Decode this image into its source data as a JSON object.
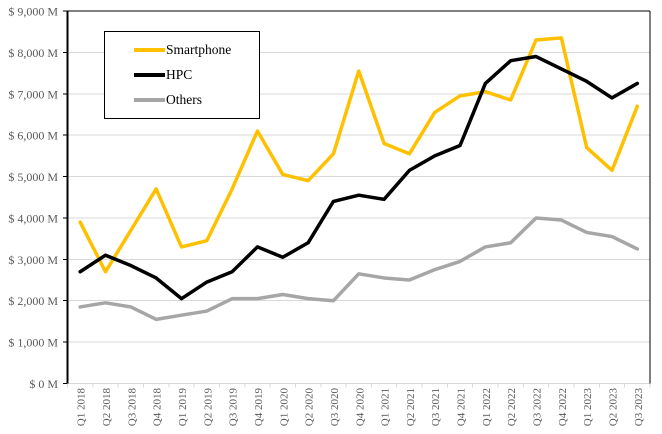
{
  "chart_data": {
    "type": "line",
    "title": "",
    "unit": "$ M",
    "categories": [
      "Q1 2018",
      "Q2 2018",
      "Q3 2018",
      "Q4 2018",
      "Q1 2019",
      "Q2 2019",
      "Q3 2019",
      "Q4 2019",
      "Q1 2020",
      "Q2 2020",
      "Q3 2020",
      "Q4 2020",
      "Q1 2021",
      "Q2 2021",
      "Q3 2021",
      "Q4 2021",
      "Q1 2022",
      "Q2 2022",
      "Q3 2022",
      "Q4 2022",
      "Q1 2023",
      "Q2 2023",
      "Q3 2023"
    ],
    "series": [
      {
        "name": "Smartphone",
        "color": "#FFC000",
        "values": [
          3900,
          2700,
          3700,
          4700,
          3300,
          3450,
          4700,
          6100,
          5050,
          4900,
          5550,
          7550,
          5800,
          5550,
          6550,
          6950,
          7050,
          6850,
          8300,
          8350,
          5700,
          5150,
          6700
        ]
      },
      {
        "name": "HPC",
        "color": "#000000",
        "values": [
          2700,
          3100,
          2850,
          2550,
          2050,
          2450,
          2700,
          3300,
          3050,
          3400,
          4400,
          4550,
          4450,
          5150,
          5500,
          5750,
          7250,
          7800,
          7900,
          7600,
          7300,
          6900,
          7250
        ]
      },
      {
        "name": "Others",
        "color": "#A6A6A6",
        "values": [
          1850,
          1950,
          1850,
          1550,
          1650,
          1750,
          2050,
          2050,
          2150,
          2050,
          2000,
          2650,
          2550,
          2500,
          2750,
          2950,
          3300,
          3400,
          4000,
          3950,
          3650,
          3550,
          3250
        ]
      }
    ],
    "ylim": [
      0,
      9000
    ],
    "ytick_step": 1000,
    "y_tick_labels": [
      "$ 0 M",
      "$ 1,000 M",
      "$ 2,000 M",
      "$ 3,000 M",
      "$ 4,000 M",
      "$ 5,000 M",
      "$ 6,000 M",
      "$ 7,000 M",
      "$ 8,000 M",
      "$ 9,000 M"
    ],
    "grid": true,
    "legend_position": "top-left"
  },
  "colors": {
    "background": "#FFFFFF",
    "gridline": "#D9D9D9",
    "axis_line": "#000000",
    "tick_label": "#595959",
    "legend_border": "#000000"
  }
}
